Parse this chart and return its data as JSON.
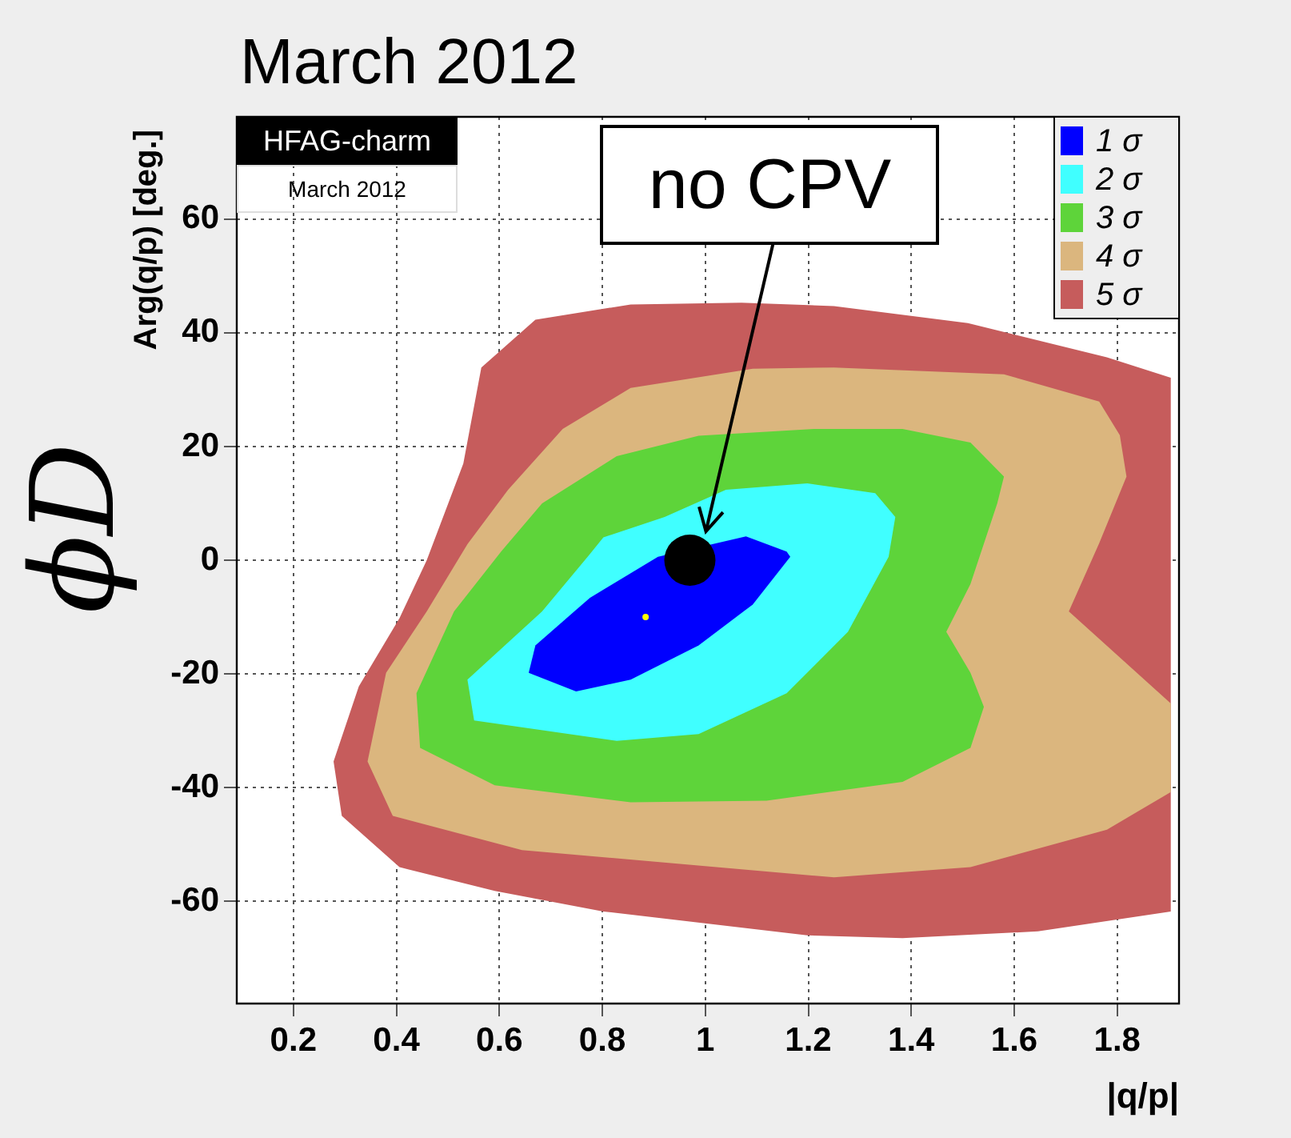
{
  "chart_data": {
    "type": "area",
    "title": "March 2012",
    "xlabel": "|q/p|",
    "ylabel": "Arg(q/p) [deg.]",
    "annotations": [
      "HFAG-charm",
      "March 2012",
      "ϕD",
      "no CPV"
    ],
    "xlim": [
      0.09,
      1.92
    ],
    "xticks": [
      0.2,
      0.4,
      0.6,
      0.8,
      1,
      1.2,
      1.4,
      1.6,
      1.8
    ],
    "ylim": [
      -78,
      78
    ],
    "yticks": [
      -60,
      -40,
      -20,
      0,
      20,
      40,
      60
    ],
    "grid": true,
    "legend": "top right",
    "series": [
      {
        "name": "1 σ",
        "color": "#0000ff",
        "x": [
          1.165,
          1.092,
          0.987,
          0.855,
          0.749,
          0.657,
          0.67,
          0.776,
          0.908,
          1.079,
          1.158
        ],
        "values": [
          0.6,
          -7.8,
          -15,
          -21,
          -23.1,
          -19.8,
          -15,
          -6.6,
          0.6,
          4.2,
          1.5
        ]
      },
      {
        "name": "2 σ",
        "color": "#40ffff",
        "x": [
          1.198,
          1.04,
          0.921,
          0.802,
          0.775,
          0.683,
          0.538,
          0.551,
          0.828,
          0.987,
          1.158,
          1.277,
          1.356,
          1.369,
          1.33
        ],
        "values": [
          13.5,
          12.4,
          7.6,
          4,
          1,
          -9,
          -21,
          -28.2,
          -31.8,
          -30.6,
          -23.4,
          -12.6,
          0.6,
          7.6,
          11.8
        ]
      },
      {
        "name": "3 σ",
        "color": "#5ed43a",
        "x": [
          1.211,
          0.987,
          0.828,
          0.683,
          0.604,
          0.512,
          0.439,
          0.446,
          0.591,
          0.855,
          1.119,
          1.383,
          1.515,
          1.541,
          1.515,
          1.468,
          1.515,
          1.567,
          1.58,
          1.515,
          1.383
        ],
        "values": [
          23.1,
          21.9,
          18.3,
          10,
          1.6,
          -9,
          -23.4,
          -33,
          -39.6,
          -42.6,
          -42.3,
          -39,
          -33,
          -25.8,
          -19.8,
          -12.6,
          -4.2,
          10,
          14.7,
          20.7,
          23.1
        ]
      },
      {
        "name": "4 σ",
        "color": "#dbb67e",
        "x": [
          0.38,
          0.344,
          0.393,
          0.644,
          1.25,
          1.515,
          1.78,
          1.904,
          1.904,
          1.706,
          1.765,
          1.818,
          1.805,
          1.765,
          1.58,
          1.25,
          1.092,
          0.855,
          0.723,
          0.617,
          0.538,
          0.459
        ],
        "values": [
          -19.8,
          -35.4,
          -45,
          -51,
          -55.8,
          -54,
          -47.4,
          -40.8,
          -25.2,
          -9,
          3,
          14.7,
          22,
          27.9,
          32.7,
          33.9,
          33.7,
          30.3,
          23.1,
          12.4,
          2.8,
          -9
        ]
      },
      {
        "name": "5 σ",
        "color": "#c65c5c",
        "x": [
          0.459,
          0.53,
          0.565,
          0.67,
          0.855,
          1.07,
          1.25,
          1.51,
          1.78,
          1.904,
          1.904,
          1.646,
          1.383,
          1.198,
          0.802,
          0.591,
          0.406,
          0.294,
          0.278,
          0.327,
          0.406
        ],
        "values": [
          0,
          17,
          33.9,
          42.3,
          45,
          45.3,
          44.7,
          41.7,
          35.7,
          32.1,
          -61.8,
          -65.3,
          -66.5,
          -66,
          -61.8,
          -58.2,
          -54,
          -45,
          -35.4,
          -22.2,
          -10.2
        ]
      },
      {
        "type": "scatter",
        "color": "#ffff00",
        "x": [
          0.884
        ],
        "values": [
          -10
        ]
      },
      {
        "type": "scatter",
        "color": "#000000",
        "x": [
          0.97
        ],
        "values": [
          0
        ]
      }
    ]
  }
}
